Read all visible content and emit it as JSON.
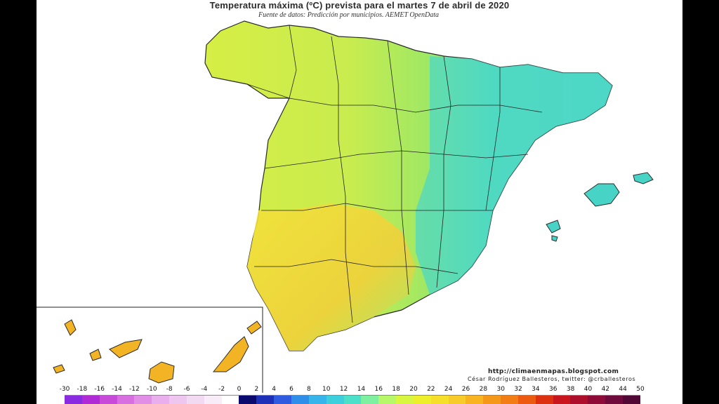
{
  "title": "Temperatura máxima (ºC) prevista para el martes 7 de abril de 2020",
  "subtitle": "Fuente de datos: Predicción por municipios. AEMET OpenData",
  "credits": {
    "url": "http://climaenmapas.blogspot.com",
    "author": "César Rodríguez Ballesteros, twitter: @crballesteros"
  },
  "legend": {
    "labels": [
      "-30",
      "-18",
      "-16",
      "-14",
      "-12",
      "-10",
      "-8",
      "-6",
      "-4",
      "-2",
      "0",
      "2",
      "4",
      "6",
      "8",
      "10",
      "12",
      "14",
      "16",
      "18",
      "20",
      "22",
      "24",
      "26",
      "28",
      "30",
      "32",
      "34",
      "36",
      "38",
      "40",
      "42",
      "44",
      "50"
    ],
    "colors": [
      "#8a2be2",
      "#b02ad6",
      "#c74bd8",
      "#d86fe0",
      "#e18ee6",
      "#e9aeec",
      "#efc6f0",
      "#f3daf3",
      "#f8ecf8",
      "#ffffff",
      "#0a0a6e",
      "#1e2fb8",
      "#2f5be0",
      "#2f8fe8",
      "#35b5ea",
      "#3dd0dc",
      "#4de0c8",
      "#7ff0a0",
      "#b6f86a",
      "#d8f540",
      "#ecef2a",
      "#f5df2a",
      "#f7cc2a",
      "#f7b420",
      "#f5981a",
      "#f27d14",
      "#ec5a10",
      "#dd3010",
      "#c8161c",
      "#ad0e2c",
      "#8e0b38",
      "#6f0a3c",
      "#520834"
    ]
  },
  "map": {
    "regions": [
      {
        "name": "peninsula",
        "fill": "#e6ec3a"
      },
      {
        "name": "mediterranean-east",
        "fill": "#4ad7c8"
      },
      {
        "name": "south-west",
        "fill": "#f4dc3a"
      },
      {
        "name": "balearic-islands",
        "fill": "#47d4c7"
      },
      {
        "name": "canary-islands",
        "fill": "#f2b324"
      }
    ]
  }
}
